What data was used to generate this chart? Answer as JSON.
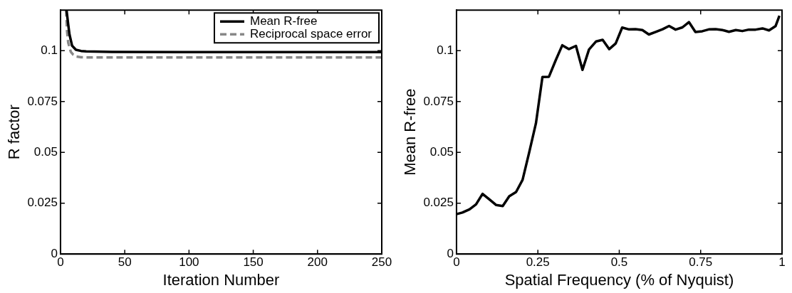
{
  "chart_data": [
    {
      "type": "line",
      "xlabel": "Iteration Number",
      "ylabel": "R factor",
      "xlim": [
        0,
        250
      ],
      "ylim": [
        0,
        0.12
      ],
      "xticks": [
        0,
        50,
        100,
        150,
        200,
        250
      ],
      "yticks": [
        0,
        0.025,
        0.05,
        0.075,
        0.1
      ],
      "grid": false,
      "legend": "top right",
      "marker": "none",
      "series": [
        {
          "name": "Mean R-free",
          "color": "#000000",
          "line_style": "solid",
          "x": [
            4.7,
            6,
            7,
            9,
            12,
            16,
            20,
            40,
            100,
            250
          ],
          "values": [
            0.12,
            0.113,
            0.108,
            0.1025,
            0.1005,
            0.0999,
            0.0997,
            0.0994,
            0.0993,
            0.0993
          ]
        },
        {
          "name": "Reciprocal space error",
          "color": "#888888",
          "line_style": "dashed",
          "x": [
            4.4,
            5,
            6,
            8,
            10,
            12,
            16,
            20,
            40,
            250
          ],
          "values": [
            0.12,
            0.11,
            0.104,
            0.0995,
            0.098,
            0.0972,
            0.0968,
            0.0967,
            0.0967,
            0.0967
          ]
        }
      ]
    },
    {
      "type": "line",
      "xlabel": "Spatial Frequency (% of Nyquist)",
      "ylabel": "Mean R-free",
      "xlim": [
        0,
        1
      ],
      "ylim": [
        0,
        0.12
      ],
      "xticks": [
        0,
        0.25,
        0.5,
        0.75,
        1
      ],
      "yticks": [
        0,
        0.025,
        0.05,
        0.075,
        0.1
      ],
      "grid": false,
      "legend": false,
      "marker": "none",
      "series": [
        {
          "color": "#000000",
          "line_style": "solid",
          "x": [
            0,
            0.018,
            0.04,
            0.06,
            0.08,
            0.103,
            0.122,
            0.142,
            0.162,
            0.183,
            0.203,
            0.223,
            0.244,
            0.264,
            0.284,
            0.305,
            0.325,
            0.345,
            0.367,
            0.387,
            0.407,
            0.429,
            0.449,
            0.469,
            0.489,
            0.509,
            0.53,
            0.55,
            0.571,
            0.591,
            0.612,
            0.633,
            0.653,
            0.673,
            0.694,
            0.714,
            0.734,
            0.755,
            0.775,
            0.796,
            0.817,
            0.837,
            0.858,
            0.878,
            0.898,
            0.919,
            0.94,
            0.96,
            0.98,
            0.992
          ],
          "values": [
            0.0196,
            0.0204,
            0.022,
            0.0244,
            0.0296,
            0.0266,
            0.0241,
            0.0236,
            0.0284,
            0.0305,
            0.0365,
            0.0498,
            0.0643,
            0.0871,
            0.0872,
            0.0954,
            0.1027,
            0.1008,
            0.1024,
            0.0906,
            0.1006,
            0.1046,
            0.1054,
            0.1008,
            0.1036,
            0.1114,
            0.1105,
            0.1106,
            0.1102,
            0.108,
            0.1093,
            0.1106,
            0.1122,
            0.1104,
            0.1115,
            0.1141,
            0.1092,
            0.1096,
            0.1105,
            0.1106,
            0.1102,
            0.1093,
            0.1102,
            0.1097,
            0.1104,
            0.1104,
            0.111,
            0.11,
            0.1121,
            0.1172
          ]
        }
      ]
    }
  ]
}
